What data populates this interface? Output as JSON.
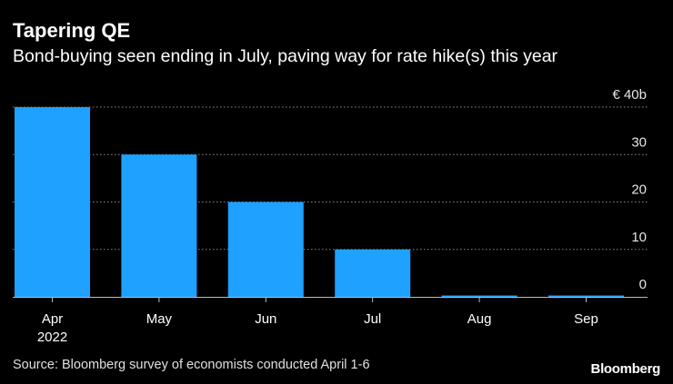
{
  "title": "Tapering QE",
  "subtitle": "Bond-buying seen ending in July, paving way for rate hike(s) this year",
  "source": "Source: Bloomberg survey of economists conducted April 1-6",
  "logo": "Bloomberg",
  "colors": {
    "background": "#000000",
    "bar": "#1ea1ff",
    "grid": "#8a8a8a",
    "text": "#ffffff"
  },
  "chart_data": {
    "type": "bar",
    "title": "Tapering QE",
    "subtitle": "Bond-buying seen ending in July, paving way for rate hike(s) this year",
    "categories": [
      "Apr",
      "May",
      "Jun",
      "Jul",
      "Aug",
      "Sep"
    ],
    "x_sublabels": [
      "2022",
      "",
      "",
      "",
      "",
      ""
    ],
    "values": [
      40,
      30,
      20,
      10,
      0,
      0
    ],
    "y_ticks": [
      "0",
      "10",
      "20",
      "30",
      "€ 40b"
    ],
    "y_tick_values": [
      0,
      10,
      20,
      30,
      40
    ],
    "ylim": [
      0,
      40
    ],
    "unit": "€ b",
    "grid": true,
    "y_axis_side": "right"
  }
}
